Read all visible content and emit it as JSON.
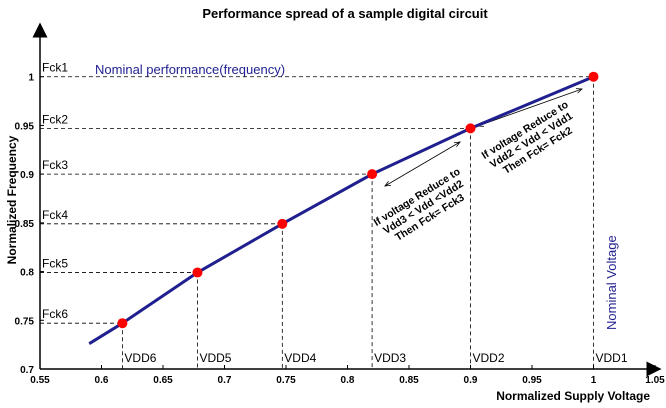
{
  "chart_data": {
    "type": "line",
    "title": "Performance spread of a sample digital circuit",
    "xlabel": "Normalized Supply Voltage",
    "ylabel": "Normalized Frequency",
    "xlim": [
      0.55,
      1.05
    ],
    "ylim": [
      0.7,
      1.05
    ],
    "xticks": [
      0.55,
      0.6,
      0.65,
      0.7,
      0.75,
      0.8,
      0.85,
      0.9,
      0.95,
      1,
      1.05
    ],
    "yticks": [
      0.7,
      0.75,
      0.8,
      0.85,
      0.9,
      0.95,
      1
    ],
    "series": [
      {
        "color": "#1f1f8f",
        "x": [
          0.59,
          0.617,
          0.678,
          0.747,
          0.82,
          0.9,
          1.0
        ],
        "values": [
          0.726,
          0.747,
          0.799,
          0.849,
          0.9,
          0.947,
          1.0
        ]
      },
      {
        "color": "#ff0000",
        "style": "markers",
        "x": [
          0.617,
          0.678,
          0.747,
          0.82,
          0.9,
          1.0
        ],
        "values": [
          0.747,
          0.799,
          0.849,
          0.9,
          0.947,
          1.0
        ],
        "fck_labels": [
          "Fck6",
          "Fck5",
          "Fck4",
          "Fck3",
          "Fck2",
          "Fck1"
        ],
        "vdd_labels": [
          "VDD6",
          "VDD5",
          "VDD4",
          "VDD3",
          "VDD2",
          "VDD1"
        ]
      }
    ],
    "annotations": {
      "nominal_performance": "Nominal performance(frequency)",
      "nominal_voltage": "Nominal Voltage",
      "reduce_to_fck3": [
        "If voltage Reduce to",
        "Vdd3 < Vdd <Vdd2",
        "Then Fck= Fck3"
      ],
      "reduce_to_fck2": [
        "If voltage Reduce to",
        "Vdd2 < Vdd < Vdd1",
        "Then Fck= Fck2"
      ]
    }
  }
}
